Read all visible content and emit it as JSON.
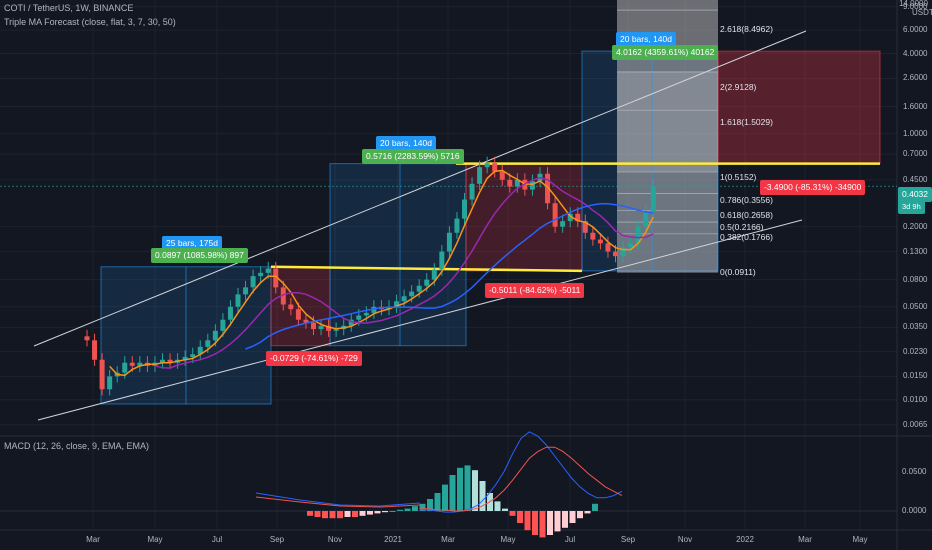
{
  "header": {
    "symbol": "COTI / TetherUS, 1W, BINANCE",
    "indicator": "Triple MA Forecast (close, flat, 3, 7, 30, 50)",
    "macd": "MACD (12, 26, close, 9, EMA, EMA)"
  },
  "price_axis": {
    "currency": "USDT",
    "top": "14.0000",
    "ticks": [
      "9.0000",
      "6.0000",
      "4.0000",
      "2.6000",
      "1.6000",
      "1.0000",
      "0.7000",
      "0.4500",
      "0.2000",
      "0.1300",
      "0.0800",
      "0.0500",
      "0.0350",
      "0.0230",
      "0.0150",
      "0.0100",
      "0.0065"
    ],
    "last_price": "0.4032",
    "last_time": "3d 9h"
  },
  "macd_axis": {
    "ticks": [
      "0.0500",
      "0.0000"
    ]
  },
  "time_axis": [
    "Mar",
    "May",
    "Jul",
    "Sep",
    "Nov",
    "2021",
    "Mar",
    "May",
    "Jul",
    "Sep",
    "Nov",
    "2022",
    "Mar",
    "May"
  ],
  "labels": {
    "m1_top": "25 bars, 175d",
    "m1_gain": "0.0897 (1085.98%) 897",
    "m1_loss": "-0.0729 (-74.61%) -729",
    "m2_top": "20 bars, 140d",
    "m2_gain": "0.5716 (2283.59%) 5716",
    "m2_loss": "-0.5011 (-84.62%) -5011",
    "m3_top": "20 bars, 140d",
    "m3_gain": "4.0162 (4359.61%) 40162",
    "m3_loss": "-3.4900 (-85.31%) -34900"
  },
  "fib": {
    "l2618": "2.618(8.4962)",
    "l2": "2(2.9128)",
    "l1618": "1.618(1.5029)",
    "l1": "1(0.5152)",
    "l0786": "0.786(0.3556)",
    "l0618": "0.618(0.2658)",
    "l05": "0.5(0.2166)",
    "l0382": "0.382(0.1766)",
    "l0": "0(0.0911)"
  },
  "colors": {
    "bg": "#131722",
    "up": "#26a69a",
    "down": "#ef5350",
    "blue": "#2962ff",
    "yellow": "#ffeb3b",
    "label_blue": "#2196f3",
    "label_green": "#4caf50",
    "label_red": "#f23645",
    "ma_orange": "#f7931a"
  },
  "chart_data": {
    "type": "candlestick",
    "title": "COTI / TetherUS, 1W, BINANCE",
    "y_scale": "log",
    "ylim": [
      0.0055,
      14
    ],
    "x_range": [
      "2020-03",
      "2022-06"
    ],
    "candles_weekly_approx": [
      [
        0.03,
        0.028
      ],
      [
        0.028,
        0.02
      ],
      [
        0.02,
        0.012
      ],
      [
        0.012,
        0.015
      ],
      [
        0.015,
        0.016
      ],
      [
        0.016,
        0.019
      ],
      [
        0.019,
        0.018
      ],
      [
        0.018,
        0.019
      ],
      [
        0.019,
        0.018
      ],
      [
        0.018,
        0.019
      ],
      [
        0.019,
        0.02
      ],
      [
        0.02,
        0.019
      ],
      [
        0.019,
        0.02
      ],
      [
        0.02,
        0.021
      ],
      [
        0.021,
        0.022
      ],
      [
        0.022,
        0.025
      ],
      [
        0.025,
        0.028
      ],
      [
        0.028,
        0.033
      ],
      [
        0.033,
        0.04
      ],
      [
        0.04,
        0.05
      ],
      [
        0.05,
        0.062
      ],
      [
        0.062,
        0.07
      ],
      [
        0.07,
        0.085
      ],
      [
        0.085,
        0.09
      ],
      [
        0.09,
        0.097
      ],
      [
        0.097,
        0.07
      ],
      [
        0.07,
        0.052
      ],
      [
        0.052,
        0.048
      ],
      [
        0.048,
        0.04
      ],
      [
        0.04,
        0.038
      ],
      [
        0.038,
        0.034
      ],
      [
        0.034,
        0.036
      ],
      [
        0.036,
        0.033
      ],
      [
        0.033,
        0.034
      ],
      [
        0.034,
        0.036
      ],
      [
        0.036,
        0.04
      ],
      [
        0.04,
        0.043
      ],
      [
        0.043,
        0.045
      ],
      [
        0.045,
        0.05
      ],
      [
        0.05,
        0.048
      ],
      [
        0.048,
        0.05
      ],
      [
        0.05,
        0.055
      ],
      [
        0.055,
        0.06
      ],
      [
        0.06,
        0.065
      ],
      [
        0.065,
        0.072
      ],
      [
        0.072,
        0.08
      ],
      [
        0.08,
        0.095
      ],
      [
        0.095,
        0.13
      ],
      [
        0.13,
        0.18
      ],
      [
        0.18,
        0.23
      ],
      [
        0.23,
        0.32
      ],
      [
        0.32,
        0.42
      ],
      [
        0.42,
        0.56
      ],
      [
        0.56,
        0.6
      ],
      [
        0.6,
        0.52
      ],
      [
        0.52,
        0.45
      ],
      [
        0.45,
        0.4
      ],
      [
        0.4,
        0.45
      ],
      [
        0.45,
        0.38
      ],
      [
        0.38,
        0.44
      ],
      [
        0.44,
        0.5
      ],
      [
        0.5,
        0.3
      ],
      [
        0.3,
        0.2
      ],
      [
        0.2,
        0.22
      ],
      [
        0.22,
        0.25
      ],
      [
        0.25,
        0.22
      ],
      [
        0.22,
        0.18
      ],
      [
        0.18,
        0.16
      ],
      [
        0.16,
        0.15
      ],
      [
        0.15,
        0.13
      ],
      [
        0.13,
        0.12
      ],
      [
        0.12,
        0.14
      ],
      [
        0.14,
        0.15
      ],
      [
        0.15,
        0.2
      ],
      [
        0.2,
        0.26
      ],
      [
        0.26,
        0.403
      ]
    ]
  }
}
